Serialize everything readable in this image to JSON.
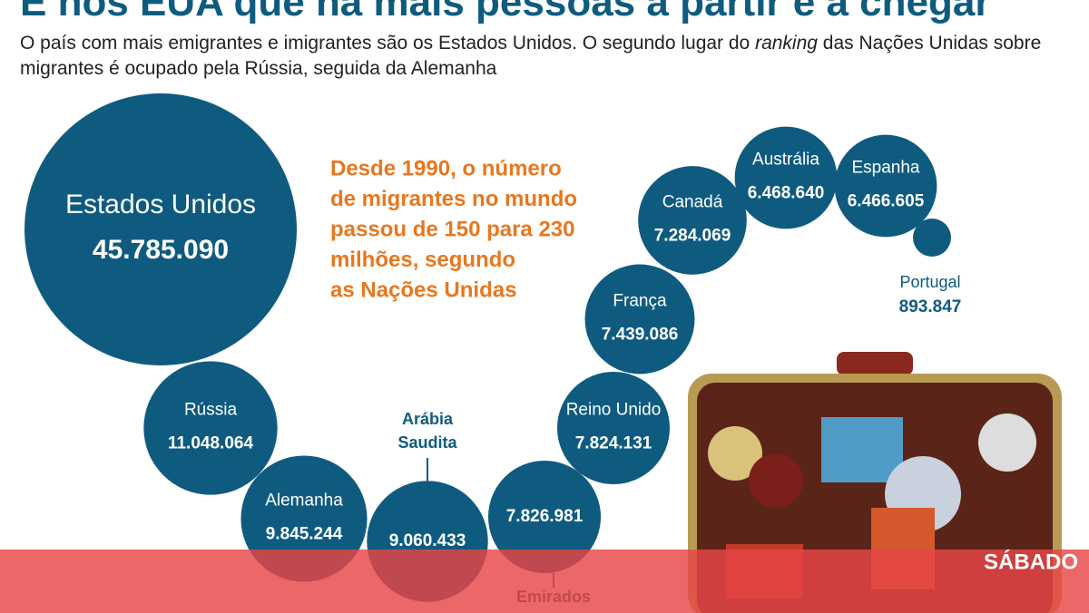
{
  "chart_data": {
    "type": "bubble",
    "title": "É nos EUA que há mais pessoas a partir e a chegar",
    "subtitle_parts": [
      "O país com mais emigrantes e imigrantes são os Estados Unidos. O segundo lugar do ",
      "ranking",
      " das Nações Unidas sobre migrantes é ocupado pela Rússia, seguida da Alemanha"
    ],
    "note_lines": [
      "Desde 1990, o número",
      "de migrantes no mundo",
      "passou de 150 para 230",
      "milhões, segundo",
      "as Nações Unidas"
    ],
    "categories": [
      "Estados Unidos",
      "Rússia",
      "Alemanha",
      "Arábia Saudita",
      "Emirados",
      "Reino Unido",
      "França",
      "Canadá",
      "Austrália",
      "Espanha",
      "Portugal"
    ],
    "values": [
      45785090,
      11048064,
      9845244,
      9060433,
      7826981,
      7824131,
      7439086,
      7284069,
      6468640,
      6466605,
      893847
    ],
    "value_labels": [
      "45.785.090",
      "11.048.064",
      "9.845.244",
      "9.060.433",
      "7.826.981",
      "7.824.131",
      "7.439.086",
      "7.284.069",
      "6.468.640",
      "6.466.605",
      "893.847"
    ],
    "color": "#0f5b80",
    "note_color": "#e8771e",
    "brand": "SÁBADO"
  }
}
